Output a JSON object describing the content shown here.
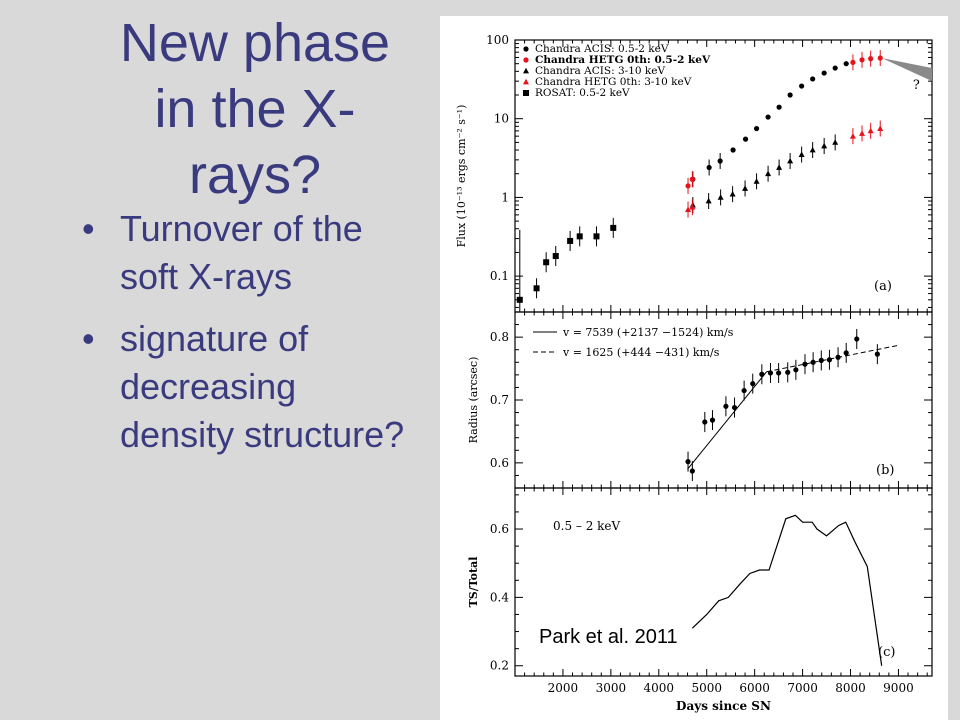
{
  "slide": {
    "title_lines": [
      "New phase",
      "in the X-",
      "rays?"
    ],
    "bullets": [
      "Turnover of the soft X-rays",
      "signature of decreasing density structure?"
    ],
    "bullet_char": "•",
    "credit": "Park et al. 2011",
    "colors": {
      "title": "#3a3a7e",
      "background": "#d9d9d9",
      "red_series": "#e8121b"
    }
  },
  "chart_data": [
    {
      "type": "scatter",
      "panel_label": "(a)",
      "ylabel": "Flux (10⁻¹³ ergs cm⁻² s⁻¹)",
      "yscale": "log",
      "xlim": [
        1000,
        9700
      ],
      "ylim": [
        0.035,
        100
      ],
      "yticks": [
        "0.1",
        "1",
        "10",
        "100"
      ],
      "legend_position": "top-left",
      "question_mark": "?",
      "series": [
        {
          "name": "Chandra ACIS: 0.5-2 keV",
          "marker": "circle",
          "color": "#000000",
          "x": [
            4710,
            5050,
            5280,
            5550,
            5810,
            6040,
            6280,
            6510,
            6740,
            6980,
            7210,
            7450,
            7680,
            7910
          ],
          "y": [
            1.7,
            2.4,
            2.9,
            4.0,
            5.5,
            7.5,
            10.5,
            14,
            20,
            26,
            32,
            38,
            44,
            50
          ]
        },
        {
          "name": "Chandra HETG 0th: 0.5-2 keV",
          "marker": "circle",
          "color": "#e8121b",
          "x": [
            4610,
            4700,
            8050,
            8240,
            8420,
            8620
          ],
          "y": [
            1.4,
            1.7,
            52,
            56,
            58,
            59
          ]
        },
        {
          "name": "Chandra ACIS: 3-10 keV",
          "marker": "triangle",
          "color": "#000000",
          "x": [
            4710,
            5040,
            5290,
            5540,
            5800,
            6040,
            6280,
            6510,
            6740,
            6980,
            7210,
            7450,
            7680
          ],
          "y": [
            0.8,
            0.9,
            1.0,
            1.1,
            1.3,
            1.6,
            2.0,
            2.4,
            2.9,
            3.5,
            4.0,
            4.5,
            5.0
          ]
        },
        {
          "name": "Chandra HETG 0th: 3-10 keV",
          "marker": "triangle",
          "color": "#e8121b",
          "x": [
            4610,
            4700,
            8050,
            8240,
            8420,
            8620
          ],
          "y": [
            0.7,
            0.75,
            6.0,
            6.5,
            7.0,
            7.5
          ]
        },
        {
          "name": "ROSAT: 0.5-2 keV",
          "marker": "square",
          "color": "#000000",
          "x": [
            1100,
            1450,
            1650,
            1850,
            2150,
            2350,
            2700,
            3050
          ],
          "y": [
            0.05,
            0.07,
            0.15,
            0.18,
            0.28,
            0.32,
            0.32,
            0.41
          ]
        }
      ]
    },
    {
      "type": "scatter",
      "panel_label": "(b)",
      "ylabel": "Radius (arcsec)",
      "xlim": [
        1000,
        9700
      ],
      "ylim": [
        0.56,
        0.84
      ],
      "yticks": [
        "0.6",
        "0.7",
        "0.8"
      ],
      "legend": [
        {
          "label": "v = 7539 (+2137 −1524) km/s",
          "style": "solid"
        },
        {
          "label": "v = 1625 (+444 −431) km/s",
          "style": "dashed"
        }
      ],
      "points": {
        "x": [
          4610,
          4700,
          4960,
          5120,
          5400,
          5580,
          5780,
          5960,
          6150,
          6330,
          6500,
          6690,
          6860,
          7050,
          7220,
          7390,
          7560,
          7740,
          7910,
          8130,
          8560
        ],
        "y": [
          0.602,
          0.587,
          0.665,
          0.668,
          0.69,
          0.688,
          0.715,
          0.726,
          0.741,
          0.743,
          0.743,
          0.744,
          0.748,
          0.757,
          0.76,
          0.763,
          0.764,
          0.768,
          0.775,
          0.797,
          0.773
        ]
      },
      "fit_lines": [
        {
          "style": "solid",
          "x": [
            4600,
            6250
          ],
          "y": [
            0.59,
            0.745
          ]
        },
        {
          "style": "dashed",
          "x": [
            6250,
            9000
          ],
          "y": [
            0.745,
            0.787
          ]
        }
      ]
    },
    {
      "type": "line",
      "panel_label": "(c)",
      "ylabel": "TS/Total",
      "xlabel": "Days since SN",
      "annotation": "0.5 – 2 keV",
      "xlim": [
        1000,
        9700
      ],
      "ylim": [
        0.17,
        0.72
      ],
      "xticks": [
        "2000",
        "3000",
        "4000",
        "5000",
        "6000",
        "7000",
        "8000",
        "9000"
      ],
      "yticks": [
        "0.2",
        "0.4",
        "0.6"
      ],
      "x": [
        4700,
        5000,
        5250,
        5450,
        5700,
        5900,
        6100,
        6300,
        6650,
        6850,
        7000,
        7200,
        7300,
        7500,
        7750,
        7900,
        8100,
        8350,
        8650
      ],
      "y": [
        0.31,
        0.35,
        0.39,
        0.4,
        0.44,
        0.47,
        0.48,
        0.48,
        0.63,
        0.64,
        0.62,
        0.62,
        0.6,
        0.58,
        0.61,
        0.62,
        0.56,
        0.49,
        0.2
      ]
    }
  ]
}
